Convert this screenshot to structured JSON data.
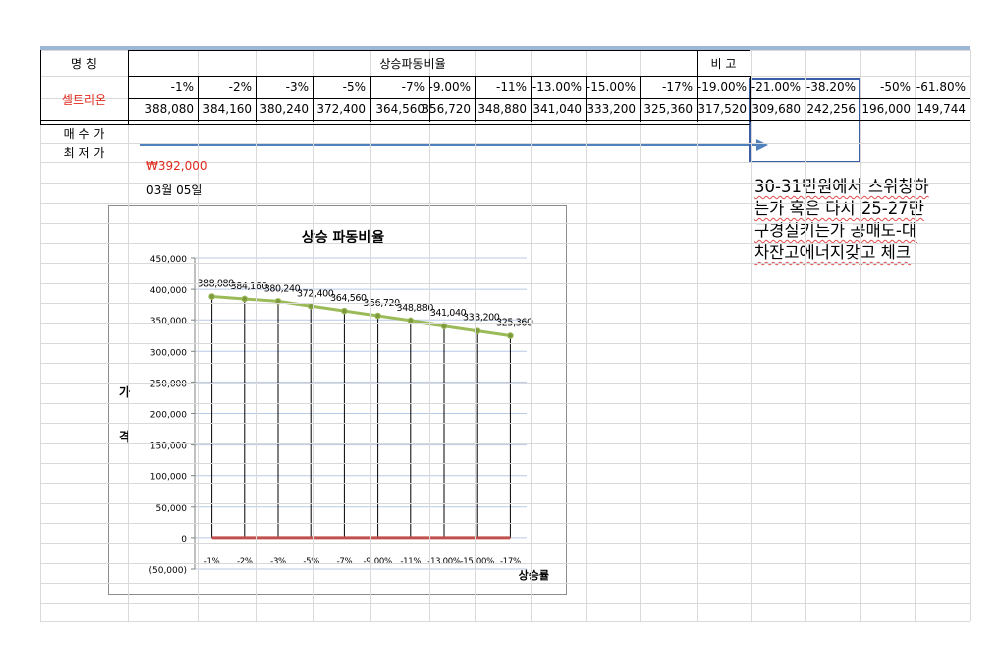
{
  "sheet": {
    "row1": {
      "name_header": "명 칭",
      "ratio_header": "상승파동비율",
      "remark_header": "비 고"
    },
    "row2": {
      "stock_name": "셀트리온",
      "percents": [
        "-1%",
        "-2%",
        "-3%",
        "-5%",
        "-7%",
        "-9.00%",
        "-11%",
        "-13.00%",
        "-15.00%",
        "-17%",
        "-19.00%",
        "-21.00%",
        "-38.20%",
        "-50%",
        "-61.80%"
      ],
      "prices": [
        "388,080",
        "384,160",
        "380,240",
        "372,400",
        "364,560",
        "356,720",
        "348,880",
        "341,040",
        "333,200",
        "325,360",
        "317,520",
        "309,680",
        "242,256",
        "196,000",
        "149,744"
      ]
    },
    "buy_label": "매 수 가",
    "low_label": "최 저 가",
    "low_value": "₩392,000",
    "date": "03월 05일"
  },
  "note_lines": [
    "30-31만원에서 스위칭하",
    "는가 혹은 다시 25-27만",
    "구경실키는가 공매도-대",
    "차잔고에너지갖고 체크"
  ],
  "colors": {
    "line": "#9bbb59",
    "zero": "#c0504d",
    "arrow": "#4f81bd",
    "box": "#3a5fa8",
    "red_text": "#e0291c"
  },
  "chart_data": {
    "type": "line",
    "title": "상승 파동비율",
    "ylabel": "가 격",
    "xlabel": "상승률",
    "categories": [
      "-1%",
      "-2%",
      "-3%",
      "-5%",
      "-7%",
      "-9.00%",
      "-11%",
      "-13.00%",
      "-15.00%",
      "-17%"
    ],
    "series": [
      {
        "values": [
          388080,
          384160,
          380240,
          372400,
          364560,
          356720,
          348880,
          341040,
          333200,
          325360
        ]
      },
      {
        "values": [
          0,
          0,
          0,
          0,
          0,
          0,
          0,
          0,
          0,
          0
        ]
      }
    ],
    "data_labels": [
      "388,080",
      "384,160",
      "380,240",
      "372,400",
      "364,560",
      "356,720",
      "348,880",
      "341,040",
      "333,200",
      "325,360"
    ],
    "yticks": [
      "450,000",
      "400,000",
      "350,000",
      "300,000",
      "250,000",
      "200,000",
      "150,000",
      "100,000",
      "50,000",
      "0",
      "(50,000)"
    ],
    "ylim": [
      -50000,
      450000
    ],
    "grid": true,
    "legend": "none"
  }
}
